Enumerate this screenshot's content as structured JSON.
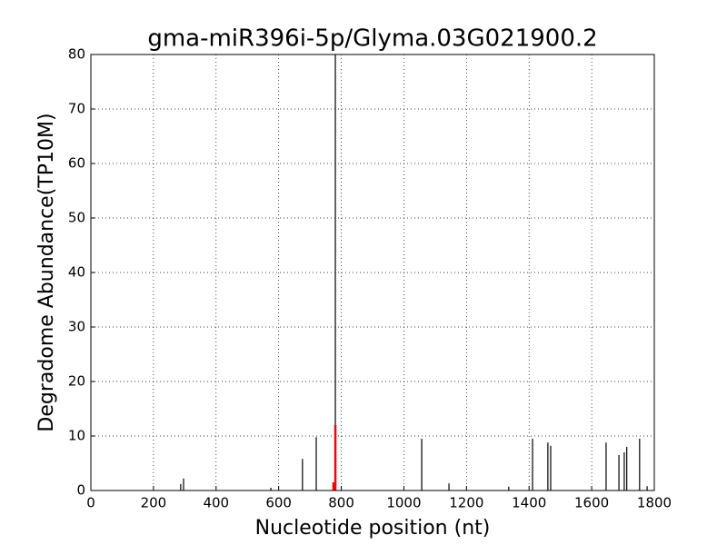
{
  "chart_data": {
    "type": "stem",
    "title": "gma-miR396i-5p/Glyma.03G021900.2",
    "x_label": "Nucleotide position (nt)",
    "y_label": "Degradome Abundance(TP10M)",
    "xlim": [
      0,
      1800
    ],
    "xticks": [
      0,
      200,
      400,
      600,
      800,
      1000,
      1200,
      1400,
      1600,
      1800
    ],
    "ylim": [
      0,
      80
    ],
    "yticks": [
      0,
      10,
      20,
      30,
      40,
      50,
      60,
      70,
      80
    ],
    "grid": true,
    "series": [
      {
        "color": "#000000",
        "x": [
          287,
          296,
          575,
          676,
          720,
          781,
          1057,
          1144,
          1335,
          1411,
          1460,
          1469,
          1646,
          1687,
          1704,
          1712,
          1753,
          1777
        ],
        "values": [
          1.2,
          2.2,
          0.5,
          5.8,
          9.8,
          80,
          9.5,
          1.3,
          0.7,
          9.5,
          8.8,
          8.2,
          8.8,
          6.5,
          7,
          8,
          9.5,
          0.8
        ]
      },
      {
        "color": "#ff0000",
        "x": [
          775,
          781
        ],
        "values": [
          1.5,
          12
        ]
      }
    ]
  }
}
